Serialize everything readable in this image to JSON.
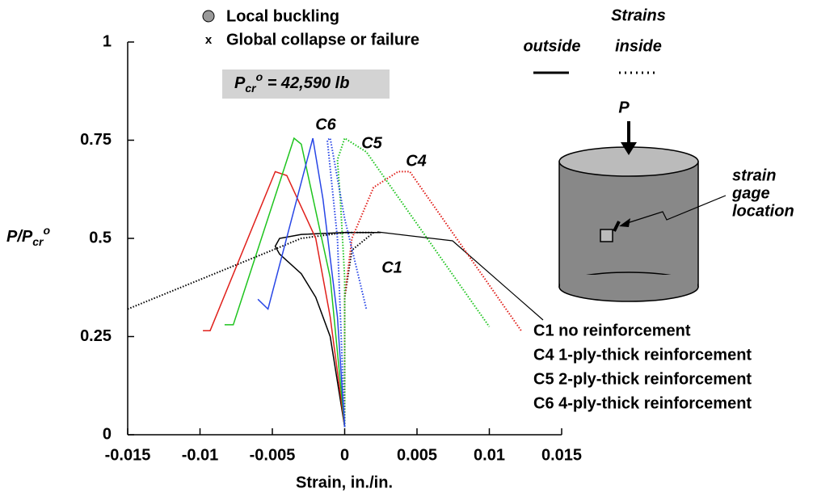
{
  "chart_data": {
    "type": "line",
    "xlabel": "Strain, in./in.",
    "ylabel": {
      "base": "P/P",
      "sub": "cr",
      "sup": "o"
    },
    "xlim": [
      -0.015,
      0.015
    ],
    "xticks": [
      -0.015,
      -0.01,
      -0.005,
      0,
      0.005,
      0.01,
      0.015
    ],
    "ylim": [
      0,
      1
    ],
    "yticks": [
      0,
      0.25,
      0.5,
      0.75,
      1
    ],
    "markers": [
      "Local buckling",
      "Global collapse or failure"
    ],
    "load_note": {
      "base": "P",
      "sub": "cr",
      "sup": "o",
      "text": " = 42,590 lb"
    },
    "strain_legend": {
      "title": "Strains",
      "outside": "outside",
      "inside": "inside"
    },
    "diagram": {
      "load": "P",
      "gage": [
        "strain",
        "gage",
        "location"
      ]
    },
    "series": [
      {
        "name": "C1 no reinforcement",
        "label": "C1",
        "color": "#000000",
        "outside": {
          "x": [
            0,
            -0.001,
            -0.002,
            -0.003,
            -0.0045,
            -0.0048,
            -0.0045,
            -0.003,
            0,
            0.0025
          ],
          "values": [
            0.02,
            0.25,
            0.35,
            0.41,
            0.46,
            0.48,
            0.5,
            0.51,
            0.515,
            0.515
          ]
        },
        "inside": {
          "x": [
            -0.015,
            -0.007,
            -0.003,
            0,
            0.002,
            0.0005,
            0,
            0
          ],
          "values": [
            0.32,
            0.44,
            0.5,
            0.515,
            0.515,
            0.47,
            0.35,
            0.02
          ]
        }
      },
      {
        "name": "C4 1-ply-thick reinforcement",
        "label": "C4",
        "color": "#e0201b",
        "outside": {
          "x": [
            -0.0098,
            -0.0093,
            -0.0048,
            -0.004,
            -0.002,
            -0.001,
            0
          ],
          "values": [
            0.265,
            0.265,
            0.67,
            0.66,
            0.5,
            0.3,
            0.02
          ]
        },
        "inside": {
          "x": [
            0,
            0,
            0.0005,
            0.002,
            0.0037,
            0.0045,
            0.0122
          ],
          "values": [
            0.02,
            0.35,
            0.5,
            0.63,
            0.67,
            0.67,
            0.265
          ]
        }
      },
      {
        "name": "C5 2-ply-thick reinforcement",
        "label": "C5",
        "color": "#1ec41e",
        "outside": {
          "x": [
            -0.0083,
            -0.0077,
            -0.0035,
            -0.003,
            -0.001,
            0
          ],
          "values": [
            0.28,
            0.28,
            0.755,
            0.74,
            0.4,
            0.02
          ]
        },
        "inside": {
          "x": [
            0,
            0,
            -0.0003,
            -0.0005,
            0,
            0.0015,
            0.01
          ],
          "values": [
            0.02,
            0.4,
            0.6,
            0.7,
            0.755,
            0.72,
            0.275
          ]
        }
      },
      {
        "name": "C6 4-ply-thick reinforcement",
        "label": "C6",
        "color": "#2846e6",
        "outside": {
          "x": [
            -0.006,
            -0.0053,
            -0.0022,
            -0.0015,
            -0.0005,
            0
          ],
          "values": [
            0.345,
            0.32,
            0.755,
            0.6,
            0.3,
            0.02
          ]
        },
        "inside": {
          "x": [
            0,
            -0.0005,
            -0.0012,
            -0.001,
            0,
            0.0015
          ],
          "values": [
            0.02,
            0.5,
            0.75,
            0.755,
            0.55,
            0.32
          ]
        }
      }
    ]
  }
}
